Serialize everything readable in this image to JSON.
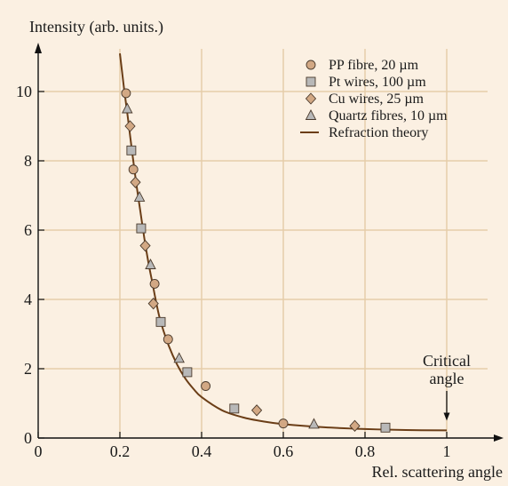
{
  "chart_data": {
    "type": "scatter",
    "ylabel": "Intensity (arb. units.)",
    "xlabel": "Rel. scattering angle",
    "xlim": [
      0,
      1.1
    ],
    "ylim": [
      0,
      11.3
    ],
    "xticks": [
      0,
      0.2,
      0.4,
      0.6,
      0.8,
      1
    ],
    "xtick_labels": [
      "0",
      "0.2",
      "0.4",
      "0.6",
      "0.8",
      "1"
    ],
    "yticks": [
      0,
      2,
      4,
      6,
      8,
      10
    ],
    "ytick_labels": [
      "0",
      "2",
      "4",
      "6",
      "8",
      "10"
    ],
    "grid": true,
    "legend_position": "top-right",
    "series": [
      {
        "name": "PP fibre, 20 µm",
        "marker": "circle",
        "color": "#d2a884",
        "x": [
          0.215,
          0.233,
          0.285,
          0.318,
          0.41,
          0.6
        ],
        "y": [
          9.95,
          7.75,
          4.45,
          2.85,
          1.5,
          0.42
        ]
      },
      {
        "name": "Pt wires, 100 µm",
        "marker": "square",
        "color": "#b8b8b8",
        "x": [
          0.228,
          0.252,
          0.3,
          0.365,
          0.48,
          0.85
        ],
        "y": [
          8.3,
          6.05,
          3.35,
          1.9,
          0.85,
          0.3
        ]
      },
      {
        "name": "Cu wires, 25 µm",
        "marker": "diamond",
        "color": "#d2a884",
        "x": [
          0.225,
          0.238,
          0.262,
          0.282,
          0.535,
          0.775
        ],
        "y": [
          9.0,
          7.38,
          5.55,
          3.88,
          0.8,
          0.35
        ]
      },
      {
        "name": "Quartz fibres, 10 µm",
        "marker": "triangle",
        "color": "#b8b8b8",
        "x": [
          0.218,
          0.248,
          0.275,
          0.345,
          0.675
        ],
        "y": [
          9.5,
          6.95,
          5.0,
          2.3,
          0.4
        ]
      },
      {
        "name": "Refraction theory",
        "marker": "line",
        "color": "#6b3e17",
        "x": [
          0.2,
          0.205,
          0.21,
          0.215,
          0.22,
          0.23,
          0.24,
          0.25,
          0.26,
          0.27,
          0.28,
          0.29,
          0.3,
          0.32,
          0.34,
          0.36,
          0.38,
          0.4,
          0.45,
          0.5,
          0.55,
          0.6,
          0.7,
          0.8,
          0.9,
          1.0
        ],
        "y": [
          11.1,
          10.6,
          10.1,
          9.65,
          9.2,
          8.25,
          7.35,
          6.55,
          5.75,
          5.05,
          4.45,
          3.85,
          3.35,
          2.65,
          2.12,
          1.72,
          1.42,
          1.18,
          0.8,
          0.6,
          0.48,
          0.4,
          0.31,
          0.26,
          0.23,
          0.22
        ]
      }
    ],
    "annotation": {
      "text_line1": "Critical",
      "text_line2": "angle",
      "x": 1.0,
      "y_arrow_tip": 0.5
    }
  }
}
